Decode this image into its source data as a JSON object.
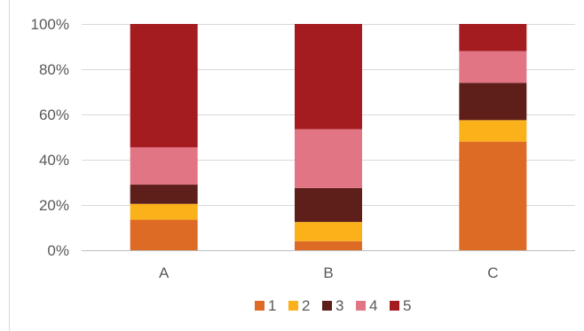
{
  "chart_data": {
    "type": "bar",
    "stacked": true,
    "percent": true,
    "categories": [
      "A",
      "B",
      "C"
    ],
    "series": [
      {
        "name": "1",
        "color": "#dd6b25",
        "values": [
          13.5,
          4,
          48
        ]
      },
      {
        "name": "2",
        "color": "#fbb21a",
        "values": [
          7,
          8.5,
          9.5
        ]
      },
      {
        "name": "3",
        "color": "#5e1f1b",
        "values": [
          8.5,
          15,
          16.5
        ]
      },
      {
        "name": "4",
        "color": "#e27584",
        "values": [
          16.5,
          26,
          14
        ]
      },
      {
        "name": "5",
        "color": "#a51c20",
        "values": [
          54.5,
          46.5,
          12
        ]
      }
    ],
    "yticks": [
      "0%",
      "20%",
      "40%",
      "60%",
      "80%",
      "100%"
    ],
    "ylim": [
      0,
      100
    ],
    "grid": true,
    "legend": "bottom"
  }
}
